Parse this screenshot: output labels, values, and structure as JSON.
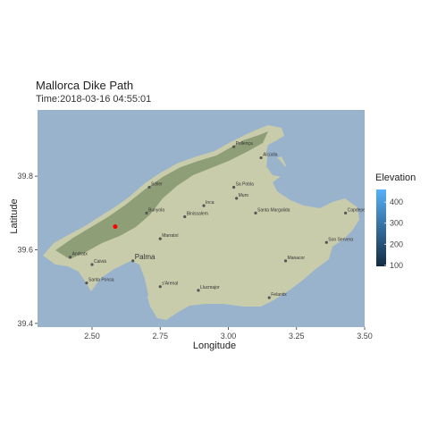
{
  "chart_data": {
    "type": "scatter",
    "title": "Mallorca Dike Path",
    "subtitle": "Time:2018-03-16 04:55:01",
    "xlabel": "Longitude",
    "ylabel": "Latitude",
    "xlim": [
      2.3,
      3.5
    ],
    "ylim": [
      39.39,
      39.98
    ],
    "x_ticks": [
      "2.50",
      "2.75",
      "3.00",
      "3.25",
      "3.50"
    ],
    "x_tick_values": [
      2.5,
      2.75,
      3.0,
      3.25,
      3.5
    ],
    "y_ticks": [
      "39.4",
      "39.6",
      "39.8"
    ],
    "y_tick_values": [
      39.4,
      39.6,
      39.8
    ],
    "grid": false,
    "legend": {
      "title": "Elevation",
      "placement": "right",
      "ticks": [
        "400",
        "300",
        "200",
        "100"
      ],
      "tick_values": [
        400,
        300,
        200,
        100
      ],
      "range": [
        95,
        460
      ],
      "low_color": "#132b43",
      "high_color": "#56b1f7"
    },
    "points": [
      {
        "x": 2.585,
        "y": 39.663,
        "color": "#ff0000"
      }
    ],
    "basemap": {
      "sea_color": "#99b3cc",
      "land_color": "#c8ccab",
      "mountain_color": "#8e9e77",
      "places": [
        {
          "name": "Palma",
          "x": 2.65,
          "y": 39.57
        },
        {
          "name": "Inca",
          "x": 2.91,
          "y": 39.72
        },
        {
          "name": "Manacor",
          "x": 3.21,
          "y": 39.57
        },
        {
          "name": "Pollença",
          "x": 3.02,
          "y": 39.88
        },
        {
          "name": "Alcúdia",
          "x": 3.12,
          "y": 39.85
        },
        {
          "name": "Sa Pobla",
          "x": 3.02,
          "y": 39.77
        },
        {
          "name": "Muro",
          "x": 3.03,
          "y": 39.74
        },
        {
          "name": "Santa Margalida",
          "x": 3.1,
          "y": 39.7
        },
        {
          "name": "Sóller",
          "x": 2.71,
          "y": 39.77
        },
        {
          "name": "Bunyola",
          "x": 2.7,
          "y": 39.7
        },
        {
          "name": "Binissalem",
          "x": 2.84,
          "y": 39.69
        },
        {
          "name": "Marratxí",
          "x": 2.75,
          "y": 39.63
        },
        {
          "name": "Andratx",
          "x": 2.42,
          "y": 39.58
        },
        {
          "name": "Calvià",
          "x": 2.5,
          "y": 39.56
        },
        {
          "name": "Santa Ponsa",
          "x": 2.48,
          "y": 39.51
        },
        {
          "name": "Llucmajor",
          "x": 2.89,
          "y": 39.49
        },
        {
          "name": "s'Arenal",
          "x": 2.75,
          "y": 39.5
        },
        {
          "name": "Felanitx",
          "x": 3.15,
          "y": 39.47
        },
        {
          "name": "Capdepera",
          "x": 3.43,
          "y": 39.7
        },
        {
          "name": "Son Servera",
          "x": 3.36,
          "y": 39.62
        }
      ]
    }
  }
}
